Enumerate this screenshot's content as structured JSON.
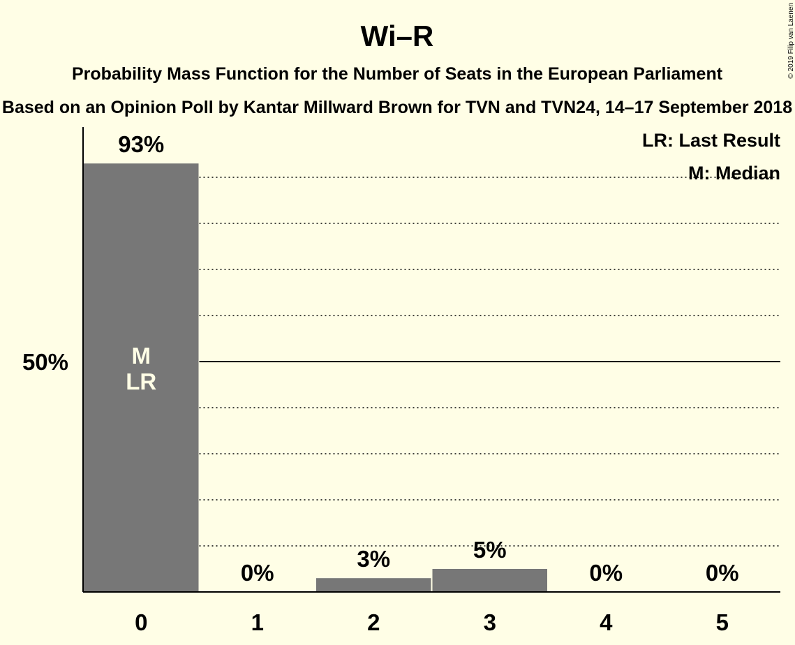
{
  "title": "Wi–R",
  "subtitle": "Probability Mass Function for the Number of Seats in the European Parliament",
  "source": "Based on an Opinion Poll by Kantar Millward Brown for TVN and TVN24, 14–17 September 2018",
  "copyright": "© 2019 Filip van Laenen",
  "legend": {
    "last_result": "LR: Last Result",
    "median": "M: Median"
  },
  "colors": {
    "background": "#FFFEE6",
    "bar": "#777777",
    "axis": "#000000"
  },
  "chart_data": {
    "type": "bar",
    "categories": [
      "0",
      "1",
      "2",
      "3",
      "4",
      "5"
    ],
    "values": [
      93,
      0,
      3,
      5,
      0,
      0
    ],
    "data_labels": [
      "93%",
      "0%",
      "3%",
      "5%",
      "0%",
      "0%"
    ],
    "bar_annotations": [
      [
        "M",
        "LR"
      ],
      [],
      [],
      [],
      [],
      []
    ],
    "ylim": [
      0,
      100
    ],
    "yticks": [
      {
        "value": 50,
        "label": "50%"
      }
    ],
    "gridlines": [
      10,
      20,
      30,
      40,
      60,
      70,
      80,
      90
    ],
    "major_gridline": 50,
    "legend_placement": "top-right"
  }
}
